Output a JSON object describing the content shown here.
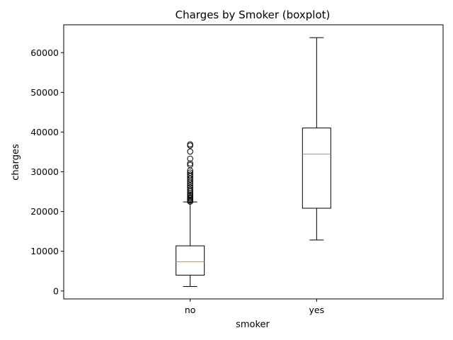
{
  "chart_data": {
    "type": "boxplot",
    "title": "Charges by Smoker (boxplot)",
    "xlabel": "smoker",
    "ylabel": "charges",
    "ylim": [
      -2000,
      67000
    ],
    "yticks": [
      0,
      10000,
      20000,
      30000,
      40000,
      50000,
      60000
    ],
    "grid": false,
    "categories": [
      "no",
      "yes"
    ],
    "boxes": [
      {
        "category": "no",
        "whisker_low": 1122,
        "q1": 3986,
        "median": 7345,
        "q3": 11363,
        "whisker_high": 22395,
        "outliers": [
          22500,
          22800,
          23000,
          23300,
          23600,
          24000,
          24300,
          24700,
          25100,
          25500,
          26000,
          26500,
          27000,
          27500,
          28000,
          28400,
          28900,
          29300,
          29800,
          30300,
          31700,
          32100,
          33300,
          35100,
          36600,
          36900
        ]
      },
      {
        "category": "yes",
        "whisker_low": 12829,
        "q1": 20826,
        "median": 34456,
        "q3": 41019,
        "whisker_high": 63770,
        "outliers": []
      }
    ],
    "colors": {
      "box": "#000000",
      "median": "#ff7f0e"
    }
  }
}
